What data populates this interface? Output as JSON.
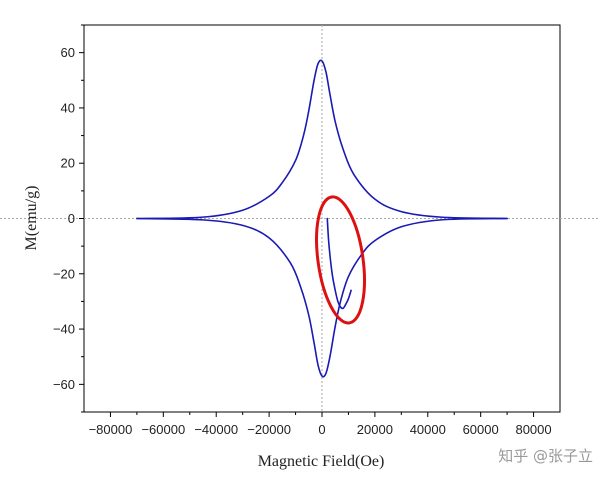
{
  "chart_data": {
    "type": "line",
    "title": "",
    "xlabel": "Magnetic Field(Oe)",
    "ylabel": "M(emu/g)",
    "xlim": [
      -90000,
      90000
    ],
    "ylim": [
      -70,
      70
    ],
    "xticks": [
      -80000,
      -60000,
      -40000,
      -20000,
      0,
      20000,
      40000,
      60000,
      80000
    ],
    "xtick_labels": [
      "−80000",
      "−60000",
      "−40000",
      "−20000",
      "0",
      "20000",
      "40000",
      "60000",
      "80000"
    ],
    "yticks": [
      -60,
      -40,
      -20,
      0,
      20,
      40,
      60
    ],
    "ytick_labels": [
      "−60",
      "−40",
      "−20",
      "0",
      "20",
      "40",
      "60"
    ],
    "grid": false,
    "zero_lines": "dotted",
    "series": [
      {
        "color": "#1a1ab4",
        "segments": [
          {
            "x": [
              -70000,
              -45000,
              -30000,
              -20000,
              -15000,
              -10000,
              -7000,
              -5000,
              -3000,
              -1500,
              0,
              1500,
              3000,
              5000,
              8000,
              12000,
              20000,
              30000,
              45000,
              70000
            ],
            "y": [
              0,
              0.5,
              3,
              8,
              13,
              21,
              30,
              39,
              50,
              56,
              57,
              53,
              45,
              35,
              25,
              16,
              7,
              2.5,
              0.5,
              0
            ]
          },
          {
            "x": [
              -70000,
              -45000,
              -30000,
              -20000,
              -12000,
              -8000,
              -5000,
              -3000,
              -1500,
              0,
              1500,
              3000,
              5000,
              7000,
              10000,
              15000,
              20000,
              30000,
              45000,
              70000
            ],
            "y": [
              0,
              -0.5,
              -2.5,
              -7,
              -16,
              -25,
              -35,
              -45,
              -53,
              -57,
              -56,
              -50,
              -39,
              -30,
              -21,
              -13,
              -8,
              -3,
              -0.5,
              0
            ]
          },
          {
            "x": [
              2000,
              2500,
              3200,
              4000,
              5000,
              6000,
              7000,
              8000,
              9000,
              10000,
              11000
            ],
            "y": [
              0,
              -8,
              -15,
              -21,
              -26,
              -30,
              -32,
              -32.5,
              -31,
              -29,
              -26
            ]
          }
        ]
      }
    ],
    "annotations": [
      {
        "type": "ellipse",
        "color": "#dd1111",
        "cx": 7000,
        "cy": -15,
        "rx": 8500,
        "ry": 23,
        "rotation_deg": -8
      }
    ]
  },
  "watermark": "知乎 @张子立"
}
